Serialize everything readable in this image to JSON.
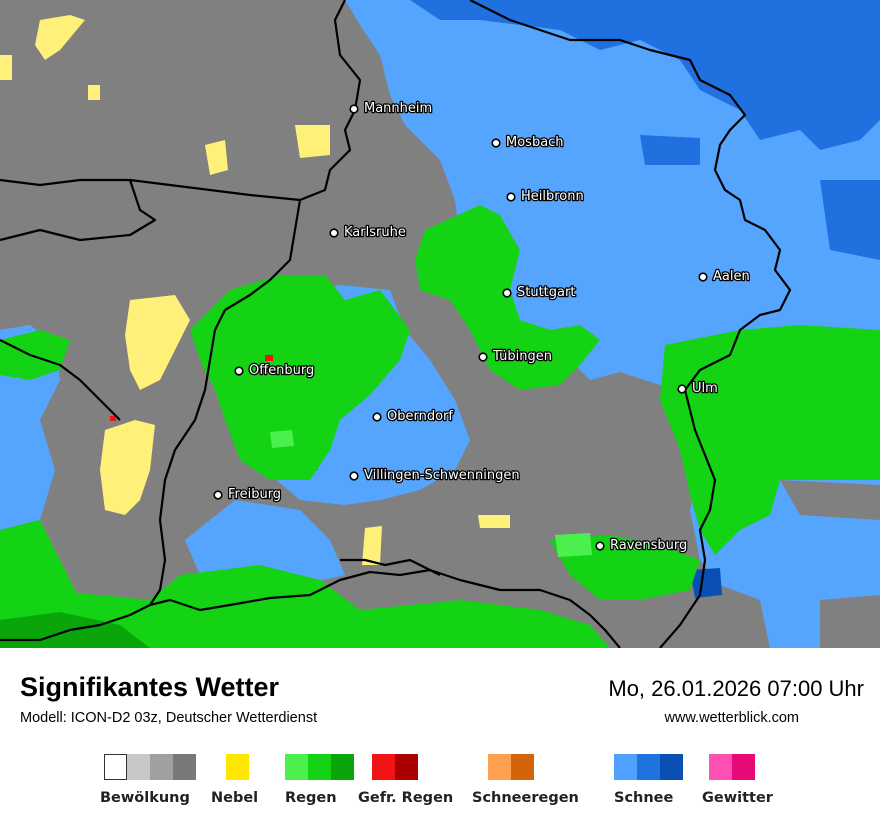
{
  "cities": [
    {
      "name": "Mannheim"
    },
    {
      "name": "Mosbach"
    },
    {
      "name": "Heilbronn"
    },
    {
      "name": "Karlsruhe"
    },
    {
      "name": "Aalen"
    },
    {
      "name": "Stuttgart"
    },
    {
      "name": "Tübingen"
    },
    {
      "name": "Offenburg"
    },
    {
      "name": "Ulm"
    },
    {
      "name": "Oberndorf"
    },
    {
      "name": "Villingen-Schwenningen"
    },
    {
      "name": "Freiburg"
    },
    {
      "name": "Ravensburg"
    }
  ],
  "footer": {
    "title": "Signifikantes Wetter",
    "subtitle": "Modell: ICON-D2 03z, Deutscher Wetterdienst",
    "datetime": "Mo, 26.01.2026 07:00 Uhr",
    "website": "www.wetterblick.com"
  },
  "legend": [
    {
      "label": "Bewölkung",
      "colors": [
        "#ffffff",
        "#c8c8c8",
        "#a0a0a0",
        "#787878"
      ]
    },
    {
      "label": "Nebel",
      "colors": [
        "#ffe600"
      ]
    },
    {
      "label": "Regen",
      "colors": [
        "#4cf04c",
        "#14d214",
        "#0aa50a"
      ]
    },
    {
      "label": "Gefr. Regen",
      "colors": [
        "#f01414",
        "#aa0000"
      ]
    },
    {
      "label": "Schneeregen",
      "colors": [
        "#ffa050",
        "#d2640a"
      ]
    },
    {
      "label": "Schnee",
      "colors": [
        "#50a0ff",
        "#1e73dc",
        "#0a50b4"
      ]
    },
    {
      "label": "Gewitter",
      "colors": [
        "#ff50b4",
        "#e60a78"
      ]
    }
  ]
}
